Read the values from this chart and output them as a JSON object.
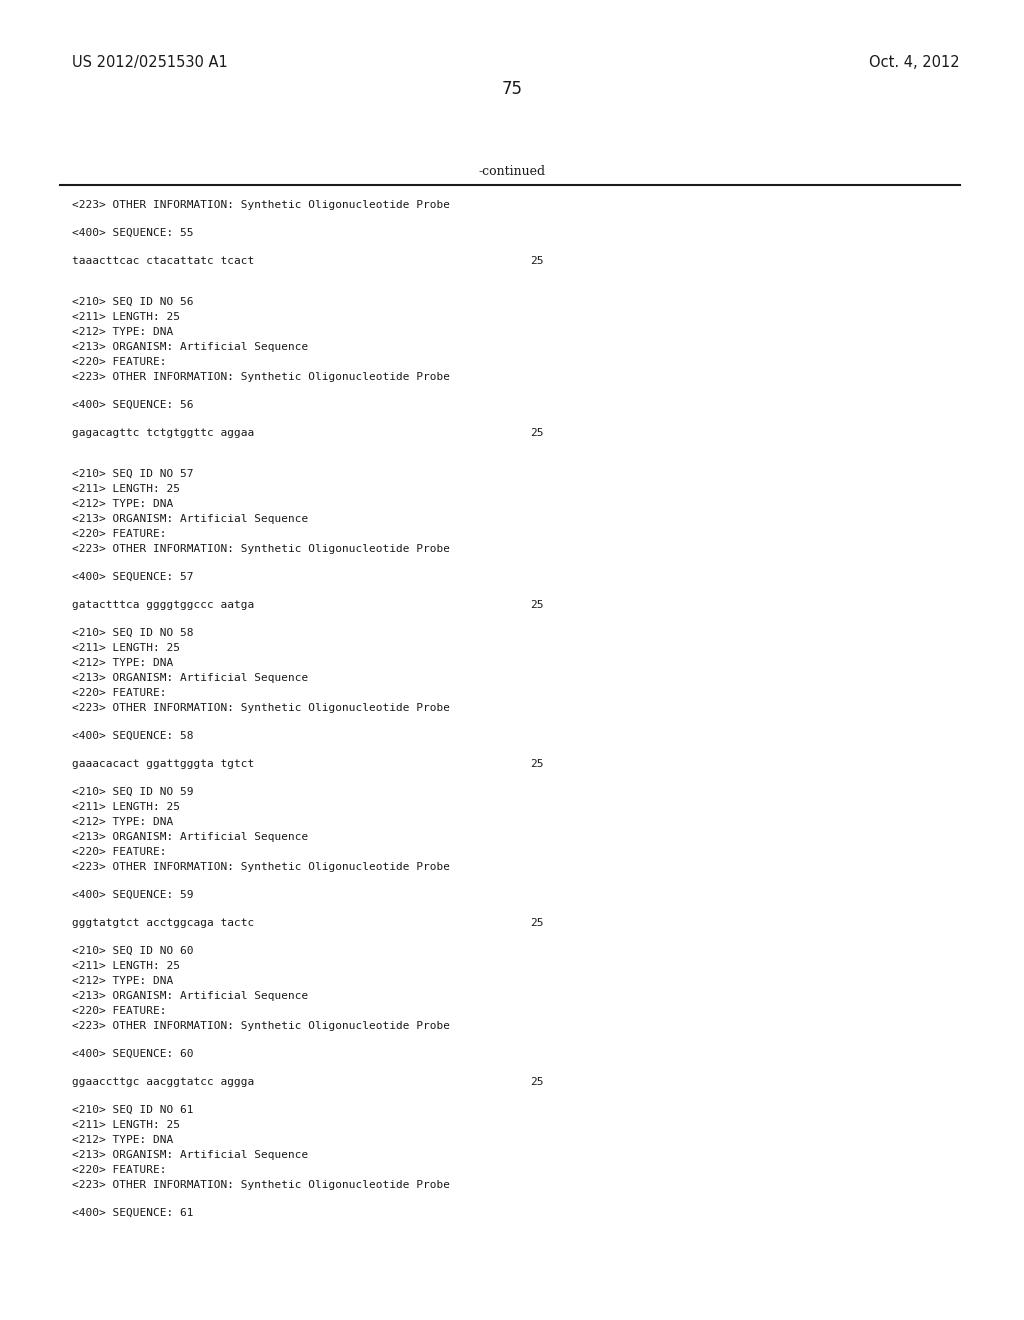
{
  "background_color": "#ffffff",
  "header_left": "US 2012/0251530 A1",
  "header_right": "Oct. 4, 2012",
  "page_number": "75",
  "continued_label": "-continued",
  "header_font_size": 10.5,
  "page_num_font_size": 12,
  "mono_font_size": 8.0,
  "content_font_size": 8.0,
  "content_blocks": [
    {
      "type": "single",
      "text": "<223> OTHER INFORMATION: Synthetic Oligonucleotide Probe"
    },
    {
      "type": "blank"
    },
    {
      "type": "single",
      "text": "<400> SEQUENCE: 55"
    },
    {
      "type": "blank"
    },
    {
      "type": "sequence",
      "text": "taaacttcac ctacattatc tcact",
      "length": "25"
    },
    {
      "type": "blank"
    },
    {
      "type": "blank"
    },
    {
      "type": "single",
      "text": "<210> SEQ ID NO 56"
    },
    {
      "type": "single",
      "text": "<211> LENGTH: 25"
    },
    {
      "type": "single",
      "text": "<212> TYPE: DNA"
    },
    {
      "type": "single",
      "text": "<213> ORGANISM: Artificial Sequence"
    },
    {
      "type": "single",
      "text": "<220> FEATURE:"
    },
    {
      "type": "single",
      "text": "<223> OTHER INFORMATION: Synthetic Oligonucleotide Probe"
    },
    {
      "type": "blank"
    },
    {
      "type": "single",
      "text": "<400> SEQUENCE: 56"
    },
    {
      "type": "blank"
    },
    {
      "type": "sequence",
      "text": "gagacagttc tctgtggttc aggaa",
      "length": "25"
    },
    {
      "type": "blank"
    },
    {
      "type": "blank"
    },
    {
      "type": "single",
      "text": "<210> SEQ ID NO 57"
    },
    {
      "type": "single",
      "text": "<211> LENGTH: 25"
    },
    {
      "type": "single",
      "text": "<212> TYPE: DNA"
    },
    {
      "type": "single",
      "text": "<213> ORGANISM: Artificial Sequence"
    },
    {
      "type": "single",
      "text": "<220> FEATURE:"
    },
    {
      "type": "single",
      "text": "<223> OTHER INFORMATION: Synthetic Oligonucleotide Probe"
    },
    {
      "type": "blank"
    },
    {
      "type": "single",
      "text": "<400> SEQUENCE: 57"
    },
    {
      "type": "blank"
    },
    {
      "type": "sequence",
      "text": "gatactttca ggggtggccc aatga",
      "length": "25"
    },
    {
      "type": "blank"
    },
    {
      "type": "single",
      "text": "<210> SEQ ID NO 58"
    },
    {
      "type": "single",
      "text": "<211> LENGTH: 25"
    },
    {
      "type": "single",
      "text": "<212> TYPE: DNA"
    },
    {
      "type": "single",
      "text": "<213> ORGANISM: Artificial Sequence"
    },
    {
      "type": "single",
      "text": "<220> FEATURE:"
    },
    {
      "type": "single",
      "text": "<223> OTHER INFORMATION: Synthetic Oligonucleotide Probe"
    },
    {
      "type": "blank"
    },
    {
      "type": "single",
      "text": "<400> SEQUENCE: 58"
    },
    {
      "type": "blank"
    },
    {
      "type": "sequence",
      "text": "gaaacacact ggattgggta tgtct",
      "length": "25"
    },
    {
      "type": "blank"
    },
    {
      "type": "single",
      "text": "<210> SEQ ID NO 59"
    },
    {
      "type": "single",
      "text": "<211> LENGTH: 25"
    },
    {
      "type": "single",
      "text": "<212> TYPE: DNA"
    },
    {
      "type": "single",
      "text": "<213> ORGANISM: Artificial Sequence"
    },
    {
      "type": "single",
      "text": "<220> FEATURE:"
    },
    {
      "type": "single",
      "text": "<223> OTHER INFORMATION: Synthetic Oligonucleotide Probe"
    },
    {
      "type": "blank"
    },
    {
      "type": "single",
      "text": "<400> SEQUENCE: 59"
    },
    {
      "type": "blank"
    },
    {
      "type": "sequence",
      "text": "gggtatgtct acctggcaga tactc",
      "length": "25"
    },
    {
      "type": "blank"
    },
    {
      "type": "single",
      "text": "<210> SEQ ID NO 60"
    },
    {
      "type": "single",
      "text": "<211> LENGTH: 25"
    },
    {
      "type": "single",
      "text": "<212> TYPE: DNA"
    },
    {
      "type": "single",
      "text": "<213> ORGANISM: Artificial Sequence"
    },
    {
      "type": "single",
      "text": "<220> FEATURE:"
    },
    {
      "type": "single",
      "text": "<223> OTHER INFORMATION: Synthetic Oligonucleotide Probe"
    },
    {
      "type": "blank"
    },
    {
      "type": "single",
      "text": "<400> SEQUENCE: 60"
    },
    {
      "type": "blank"
    },
    {
      "type": "sequence",
      "text": "ggaaccttgc aacggtatcc aggga",
      "length": "25"
    },
    {
      "type": "blank"
    },
    {
      "type": "single",
      "text": "<210> SEQ ID NO 61"
    },
    {
      "type": "single",
      "text": "<211> LENGTH: 25"
    },
    {
      "type": "single",
      "text": "<212> TYPE: DNA"
    },
    {
      "type": "single",
      "text": "<213> ORGANISM: Artificial Sequence"
    },
    {
      "type": "single",
      "text": "<220> FEATURE:"
    },
    {
      "type": "single",
      "text": "<223> OTHER INFORMATION: Synthetic Oligonucleotide Probe"
    },
    {
      "type": "blank"
    },
    {
      "type": "single",
      "text": "<400> SEQUENCE: 61"
    }
  ]
}
